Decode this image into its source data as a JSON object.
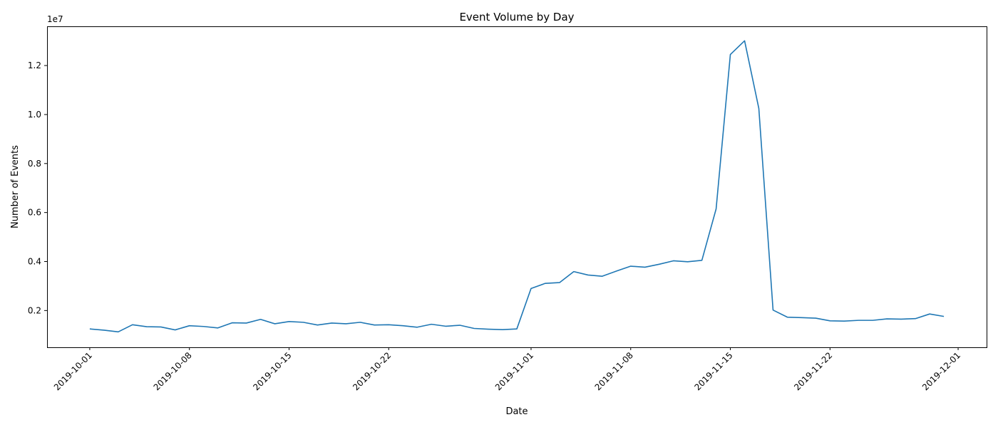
{
  "chart_data": {
    "type": "line",
    "title": "Event Volume by Day",
    "xlabel": "Date",
    "ylabel": "Number of Events",
    "y_offset_label": "1e7",
    "y_scale_factor": 10000000,
    "grid": false,
    "x_ticks": [
      "2019-10-01",
      "2019-10-08",
      "2019-10-15",
      "2019-10-22",
      "2019-11-01",
      "2019-11-08",
      "2019-11-15",
      "2019-11-22",
      "2019-12-01"
    ],
    "y_ticks": [
      0.2,
      0.4,
      0.6,
      0.8,
      1.0,
      1.2
    ],
    "xlim": [
      "2019-09-28",
      "2019-12-03"
    ],
    "ylim": [
      500000,
      13600000
    ],
    "series": [
      {
        "color": "#1f77b4",
        "x": [
          "2019-10-01",
          "2019-10-02",
          "2019-10-03",
          "2019-10-04",
          "2019-10-05",
          "2019-10-06",
          "2019-10-07",
          "2019-10-08",
          "2019-10-09",
          "2019-10-10",
          "2019-10-11",
          "2019-10-12",
          "2019-10-13",
          "2019-10-14",
          "2019-10-15",
          "2019-10-16",
          "2019-10-17",
          "2019-10-18",
          "2019-10-19",
          "2019-10-20",
          "2019-10-21",
          "2019-10-22",
          "2019-10-23",
          "2019-10-24",
          "2019-10-25",
          "2019-10-26",
          "2019-10-27",
          "2019-10-28",
          "2019-10-29",
          "2019-10-30",
          "2019-10-31",
          "2019-11-01",
          "2019-11-02",
          "2019-11-03",
          "2019-11-04",
          "2019-11-05",
          "2019-11-06",
          "2019-11-07",
          "2019-11-08",
          "2019-11-09",
          "2019-11-10",
          "2019-11-11",
          "2019-11-12",
          "2019-11-13",
          "2019-11-14",
          "2019-11-15",
          "2019-11-16",
          "2019-11-17",
          "2019-11-18",
          "2019-11-19",
          "2019-11-20",
          "2019-11-21",
          "2019-11-22",
          "2019-11-23",
          "2019-11-24",
          "2019-11-25",
          "2019-11-26",
          "2019-11-27",
          "2019-11-28",
          "2019-11-29",
          "2019-11-30"
        ],
        "values": [
          1250000,
          1200000,
          1130000,
          1420000,
          1340000,
          1330000,
          1210000,
          1380000,
          1350000,
          1290000,
          1500000,
          1490000,
          1640000,
          1460000,
          1550000,
          1520000,
          1410000,
          1490000,
          1460000,
          1520000,
          1410000,
          1420000,
          1380000,
          1320000,
          1440000,
          1360000,
          1400000,
          1270000,
          1240000,
          1220000,
          1250000,
          2900000,
          3110000,
          3140000,
          3590000,
          3450000,
          3400000,
          3610000,
          3810000,
          3770000,
          3890000,
          4030000,
          3990000,
          4050000,
          6150000,
          12450000,
          13010000,
          10250000,
          2020000,
          1730000,
          1710000,
          1690000,
          1580000,
          1570000,
          1600000,
          1600000,
          1660000,
          1650000,
          1670000,
          1860000,
          1760000
        ]
      }
    ]
  }
}
